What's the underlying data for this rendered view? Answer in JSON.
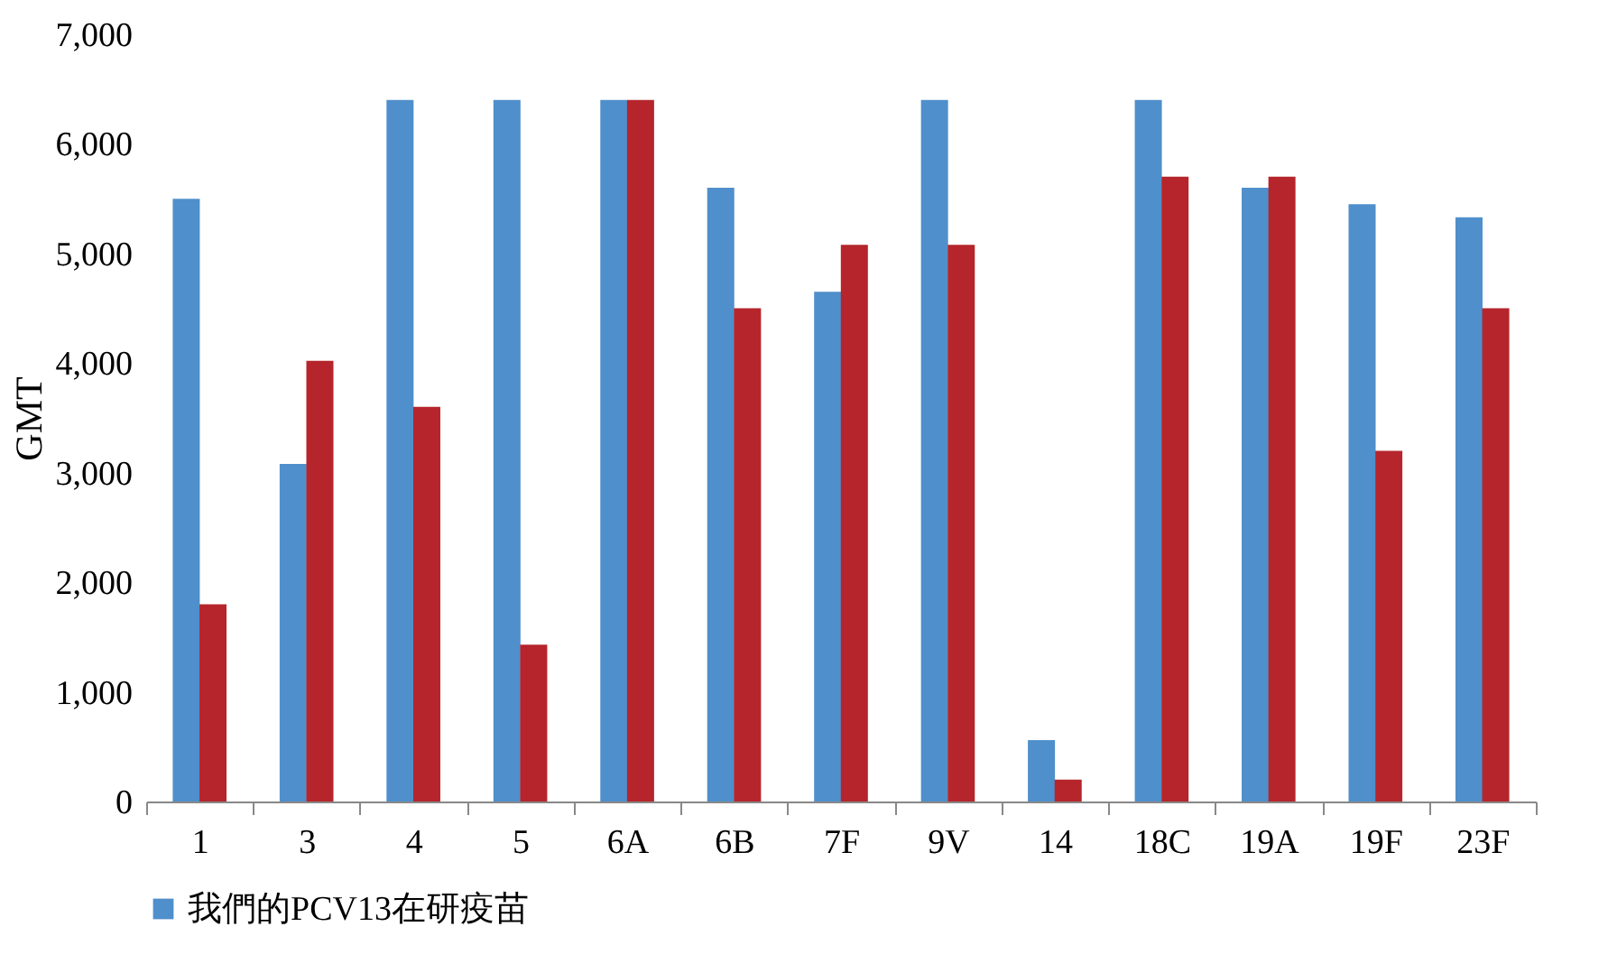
{
  "chart_data": {
    "type": "bar",
    "ylabel": "GMT",
    "categories": [
      "1",
      "3",
      "4",
      "5",
      "6A",
      "6B",
      "7F",
      "9V",
      "14",
      "18C",
      "19A",
      "19F",
      "23F"
    ],
    "series": [
      {
        "name": "我們的PCV13在研疫苗",
        "color": "#4f8fcb",
        "values": [
          5500,
          3080,
          6400,
          6400,
          6400,
          5600,
          4650,
          6400,
          560,
          6400,
          5600,
          5450,
          5330
        ]
      },
      {
        "color": "#b5252b",
        "values": [
          1800,
          4020,
          3600,
          1430,
          6400,
          4500,
          5080,
          5080,
          200,
          5700,
          5700,
          3200,
          4500
        ]
      }
    ],
    "ylim": [
      0,
      7000
    ],
    "yticks": [
      {
        "value": 0,
        "label": "0"
      },
      {
        "value": 1000,
        "label": "1,000"
      },
      {
        "value": 2000,
        "label": "2,000"
      },
      {
        "value": 3000,
        "label": "3,000"
      },
      {
        "value": 4000,
        "label": "4,000"
      },
      {
        "value": 5000,
        "label": "5,000"
      },
      {
        "value": 6000,
        "label": "6,000"
      },
      {
        "value": 7000,
        "label": "7,000"
      }
    ],
    "legend": "bottom"
  }
}
